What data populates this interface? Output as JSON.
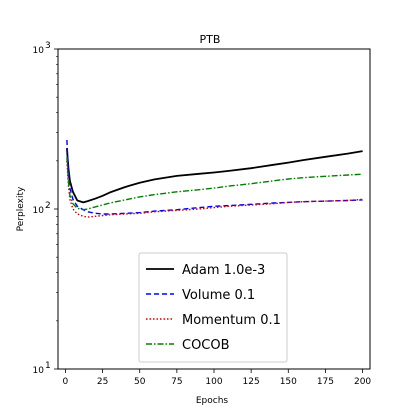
{
  "chart_data": {
    "type": "line",
    "title": "PTB",
    "xlabel": "Epochs",
    "ylabel": "Perplexity",
    "xlim": [
      -5,
      205
    ],
    "ylim": [
      10,
      1000
    ],
    "yscale": "log",
    "grid": false,
    "legend_position": "lower-center",
    "x_ticks": [
      0,
      25,
      50,
      75,
      100,
      125,
      150,
      175,
      200
    ],
    "x_tick_labels": [
      "0",
      "25",
      "50",
      "75",
      "100",
      "125",
      "150",
      "175",
      "200"
    ],
    "y_ticks": [
      10,
      100,
      1000
    ],
    "y_tick_labels": [
      "10",
      "10",
      "10"
    ],
    "y_tick_exponents": [
      "1",
      "2",
      "3"
    ],
    "x": [
      1,
      2,
      3,
      5,
      8,
      12,
      15,
      20,
      25,
      30,
      40,
      50,
      60,
      75,
      90,
      100,
      110,
      125,
      140,
      150,
      160,
      175,
      190,
      200
    ],
    "series": [
      {
        "name": "Adam 1.0e-3",
        "color": "#000000",
        "dash": "solid",
        "values": [
          240,
          180,
          150,
          128,
          113,
          110,
          112,
          116,
          121,
          127,
          137,
          146,
          153,
          161,
          166,
          169,
          173,
          180,
          189,
          195,
          202,
          212,
          222,
          230
        ]
      },
      {
        "name": "Volume 0.1",
        "color": "#0000ff",
        "dash": "dashed",
        "values": [
          270,
          165,
          135,
          115,
          104,
          99,
          96,
          94,
          93,
          93,
          94,
          95,
          97,
          99,
          102,
          104,
          105,
          107,
          109,
          110,
          111,
          112,
          113,
          114
        ]
      },
      {
        "name": "Momentum 0.1",
        "color": "#cc0000",
        "dash": "dotted",
        "values": [
          200,
          140,
          115,
          100,
          93,
          90,
          89,
          90,
          91,
          92,
          93,
          94,
          96,
          98,
          100,
          102,
          104,
          106,
          108,
          110,
          111,
          112,
          113,
          115
        ]
      },
      {
        "name": "COCOB",
        "color": "#008000",
        "dash": "dashdot",
        "values": [
          210,
          150,
          122,
          108,
          101,
          99,
          100,
          103,
          106,
          109,
          114,
          119,
          123,
          128,
          132,
          135,
          139,
          144,
          150,
          154,
          157,
          160,
          163,
          165
        ]
      }
    ]
  }
}
